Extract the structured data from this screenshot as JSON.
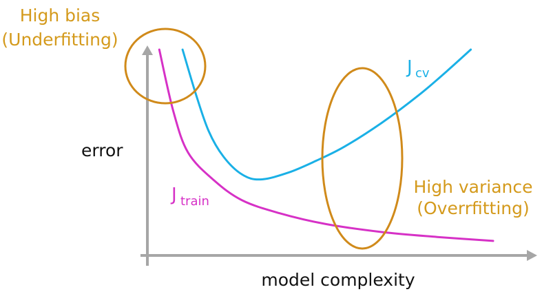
{
  "chart_data": {
    "type": "line",
    "xlabel": "model complexity",
    "ylabel": "error",
    "series": [
      {
        "name": "J",
        "subscript": "train",
        "color": "#d631c6",
        "x": [
          0.05,
          0.8,
          1.6,
          3,
          4.5,
          6.5,
          9,
          12,
          15,
          18
        ],
        "y": [
          10.0,
          6.9,
          4.8,
          3.4,
          2.4,
          1.75,
          1.2,
          0.8,
          0.55,
          0.35
        ]
      },
      {
        "name": "J",
        "subscript": "cv",
        "color": "#1ab0e6",
        "x": [
          1.3,
          2,
          2.7,
          3.5,
          4.5,
          5.5,
          7,
          8.5,
          10,
          12,
          14,
          15.5,
          16.8
        ],
        "y": [
          10.0,
          7.8,
          5.9,
          4.6,
          3.7,
          3.45,
          3.8,
          4.4,
          5.1,
          6.3,
          7.7,
          8.9,
          10.0
        ]
      }
    ],
    "annotations": [
      {
        "lines": [
          "High bias",
          "(Underfitting)"
        ],
        "color": "#d49a1c"
      },
      {
        "lines": [
          "High variance",
          "(Overrfitting)"
        ],
        "color": "#d49a1c"
      }
    ],
    "highlight_color": "#d08a1a",
    "axis_color": "#a6a6a6"
  }
}
